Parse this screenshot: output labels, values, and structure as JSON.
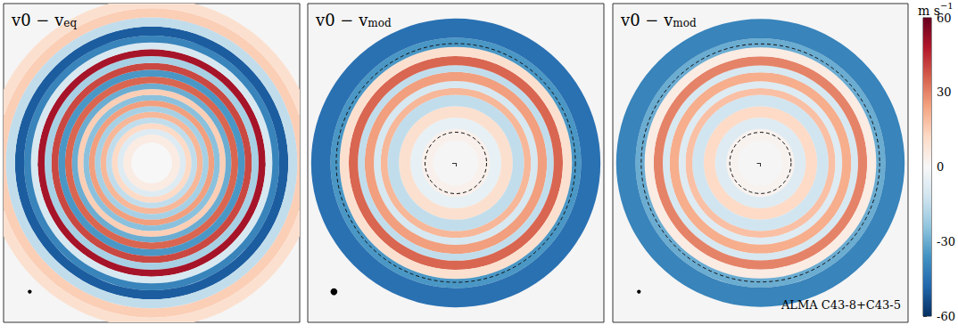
{
  "chart_data": {
    "type": "polar_map",
    "xlim": [
      -1.3,
      1.3
    ],
    "ylim": [
      -1.3,
      1.3
    ],
    "xticks": [
      -1,
      0,
      1
    ],
    "yticks": [
      -1,
      -0.5,
      0,
      0.5,
      1
    ],
    "tick_labels": false,
    "colorbar": {
      "label": "m s",
      "label_superscript": "−1",
      "range": [
        -60,
        60
      ],
      "ticks": [
        -60,
        -30,
        0,
        30,
        60
      ]
    },
    "panels": [
      {
        "label": "v0 − v",
        "label_subscript": "eq",
        "ring_edges": [
          0,
          0.18,
          0.25,
          0.3,
          0.35,
          0.4,
          0.45,
          0.5,
          0.55,
          0.6,
          0.65,
          0.7,
          0.76,
          0.82,
          0.88,
          0.94,
          1.0,
          1.06,
          1.12,
          1.2,
          1.28,
          1.36,
          1.45
        ],
        "values": [
          0,
          5,
          -8,
          12,
          -15,
          20,
          -20,
          25,
          -25,
          15,
          -30,
          35,
          -35,
          40,
          -20,
          50,
          -10,
          -40,
          -50,
          -15,
          15,
          10
        ],
        "beam": {
          "x": -1.07,
          "y": -1.05,
          "r": 0.017
        }
      },
      {
        "label": "v0 − v",
        "label_subscript": "mod",
        "ring_edges": [
          0.2,
          0.3,
          0.4,
          0.5,
          0.6,
          0.66,
          0.72,
          0.8,
          0.86,
          0.94,
          1.02,
          1.1,
          1.27
        ],
        "values": [
          3,
          -5,
          10,
          -15,
          20,
          -10,
          25,
          -15,
          35,
          10,
          -35,
          -45
        ],
        "mask_radii": [
          0.27,
          1.05
        ],
        "beam": {
          "x": -1.07,
          "y": -1.05,
          "r": 0.03
        }
      },
      {
        "label": "v0 − v",
        "label_subscript": "mod",
        "ring_edges": [
          0.2,
          0.3,
          0.4,
          0.5,
          0.6,
          0.66,
          0.72,
          0.8,
          0.86,
          0.94,
          1.02,
          1.1,
          1.27
        ],
        "values": [
          2,
          -8,
          12,
          -12,
          18,
          -8,
          22,
          -10,
          30,
          5,
          -30,
          -40
        ],
        "mask_radii": [
          0.27,
          1.05
        ],
        "beam": {
          "x": -1.07,
          "y": -1.05,
          "r": 0.017
        },
        "annotation": "ALMA C43-8+C43-5"
      }
    ]
  }
}
